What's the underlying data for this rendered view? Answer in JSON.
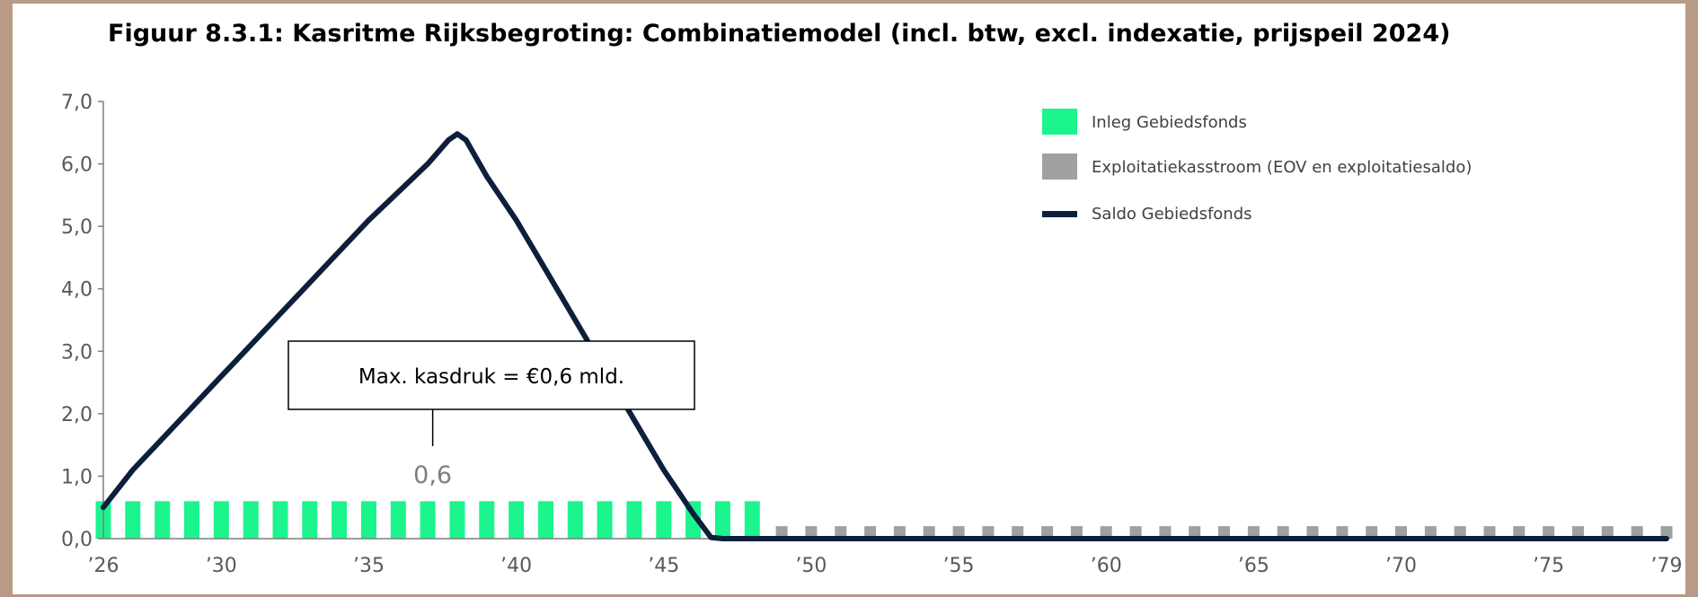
{
  "chart_data": {
    "type": "bar",
    "title": "Figuur 8.3.1: Kasritme Rijksbegroting: Combinatiemodel (incl. btw, excl. indexatie, prijspeil 2024)",
    "xlabel": "",
    "ylabel": "",
    "ylim": [
      0,
      7
    ],
    "yticks": [
      "0,0",
      "1,0",
      "2,0",
      "3,0",
      "4,0",
      "5,0",
      "6,0",
      "7,0"
    ],
    "x": [
      2026,
      2027,
      2028,
      2029,
      2030,
      2031,
      2032,
      2033,
      2034,
      2035,
      2036,
      2037,
      2038,
      2039,
      2040,
      2041,
      2042,
      2043,
      2044,
      2045,
      2046,
      2047,
      2048,
      2049,
      2050,
      2051,
      2052,
      2053,
      2054,
      2055,
      2056,
      2057,
      2058,
      2059,
      2060,
      2061,
      2062,
      2063,
      2064,
      2065,
      2066,
      2067,
      2068,
      2069,
      2070,
      2071,
      2072,
      2073,
      2074,
      2075,
      2076,
      2077,
      2078,
      2079
    ],
    "xtick_labels": [
      {
        "year": 2026,
        "label": "’26"
      },
      {
        "year": 2030,
        "label": "’30"
      },
      {
        "year": 2035,
        "label": "’35"
      },
      {
        "year": 2040,
        "label": "’40"
      },
      {
        "year": 2045,
        "label": "’45"
      },
      {
        "year": 2050,
        "label": "’50"
      },
      {
        "year": 2055,
        "label": "’55"
      },
      {
        "year": 2060,
        "label": "’60"
      },
      {
        "year": 2065,
        "label": "’65"
      },
      {
        "year": 2070,
        "label": "’70"
      },
      {
        "year": 2075,
        "label": "’75"
      },
      {
        "year": 2079,
        "label": "’79"
      }
    ],
    "series": [
      {
        "name": "Inleg Gebiedsfonds",
        "kind": "bar",
        "color": "#1cf48e",
        "values": [
          0.6,
          0.6,
          0.6,
          0.6,
          0.6,
          0.6,
          0.6,
          0.6,
          0.6,
          0.6,
          0.6,
          0.6,
          0.6,
          0.6,
          0.6,
          0.6,
          0.6,
          0.6,
          0.6,
          0.6,
          0.6,
          0.6,
          0.6,
          0,
          0,
          0,
          0,
          0,
          0,
          0,
          0,
          0,
          0,
          0,
          0,
          0,
          0,
          0,
          0,
          0,
          0,
          0,
          0,
          0,
          0,
          0,
          0,
          0,
          0,
          0,
          0,
          0,
          0,
          0
        ]
      },
      {
        "name": "Exploitatiekasstroom (EOV en exploitatiesaldo)",
        "kind": "bar",
        "color": "#a0a0a0",
        "values": [
          0,
          0,
          0,
          0,
          0,
          0,
          0,
          0,
          0,
          0,
          0,
          0,
          0,
          0,
          0,
          0,
          0,
          0,
          0,
          0,
          0,
          0,
          0,
          0.2,
          0.2,
          0.2,
          0.2,
          0.2,
          0.2,
          0.2,
          0.2,
          0.2,
          0.2,
          0.2,
          0.2,
          0.2,
          0.2,
          0.2,
          0.2,
          0.2,
          0.2,
          0.2,
          0.2,
          0.2,
          0.2,
          0.2,
          0.2,
          0.2,
          0.2,
          0.2,
          0.2,
          0.2,
          0.2,
          0.2
        ]
      },
      {
        "name": "Saldo Gebiedsfonds",
        "kind": "line",
        "color": "#0d1f3c",
        "points": [
          [
            2026,
            0.5
          ],
          [
            2027,
            1.1
          ],
          [
            2028,
            1.6
          ],
          [
            2029,
            2.1
          ],
          [
            2030,
            2.6
          ],
          [
            2031,
            3.1
          ],
          [
            2032,
            3.6
          ],
          [
            2033,
            4.1
          ],
          [
            2034,
            4.6
          ],
          [
            2035,
            5.1
          ],
          [
            2036,
            5.55
          ],
          [
            2037,
            6.0
          ],
          [
            2037.7,
            6.38
          ],
          [
            2038,
            6.48
          ],
          [
            2038.3,
            6.38
          ],
          [
            2039,
            5.8
          ],
          [
            2040,
            5.1
          ],
          [
            2041,
            4.3
          ],
          [
            2042,
            3.5
          ],
          [
            2043,
            2.7
          ],
          [
            2044,
            1.9
          ],
          [
            2045,
            1.1
          ],
          [
            2046,
            0.4
          ],
          [
            2046.6,
            0.02
          ],
          [
            2047,
            0.0
          ],
          [
            2079,
            0.0
          ]
        ]
      }
    ],
    "legend_position": "top-right",
    "grid": false,
    "annotations": [
      {
        "text": "Max. kasdruk = €0,6 mld.",
        "type": "callout"
      },
      {
        "text": "0,6",
        "type": "value-label"
      }
    ]
  }
}
